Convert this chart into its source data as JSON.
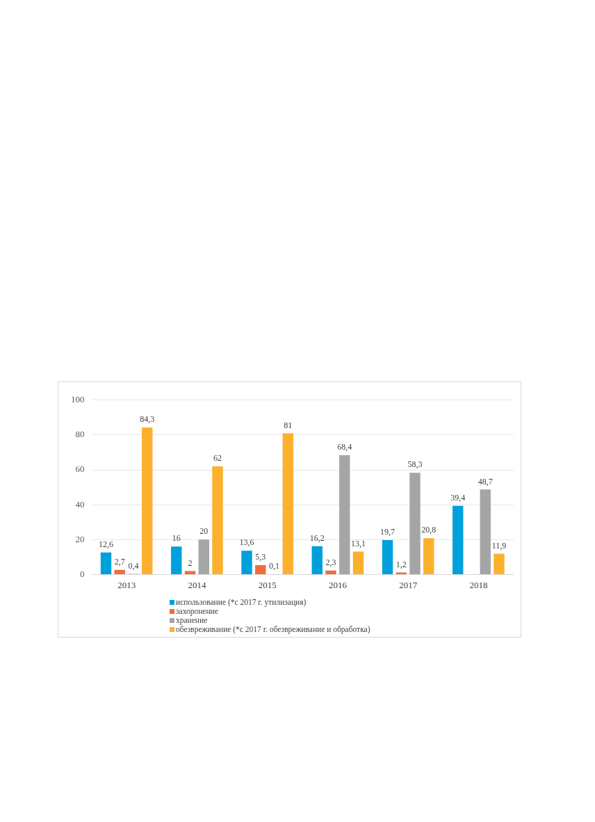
{
  "chart_data": {
    "type": "bar",
    "categories": [
      "2013",
      "2014",
      "2015",
      "2016",
      "2017",
      "2018"
    ],
    "series": [
      {
        "name": "использование (*с 2017 г.  утилизация)",
        "color": "#00a0dc",
        "values": [
          12.6,
          16,
          13.6,
          16.2,
          19.7,
          39.4
        ],
        "value_labels": [
          "12,6",
          "16",
          "13,6",
          "16,2",
          "19,7",
          "39,4"
        ]
      },
      {
        "name": "захоронение",
        "color": "#ef6c3c",
        "values": [
          2.7,
          2,
          5.3,
          2.3,
          1.2,
          null
        ],
        "value_labels": [
          "2,7",
          "2",
          "5,3",
          "2,3",
          "1,2",
          null
        ]
      },
      {
        "name": "хранение",
        "color": "#a5a5a5",
        "values": [
          0.4,
          20,
          0.1,
          68.4,
          58.3,
          48.7
        ],
        "value_labels": [
          "0,4",
          "20",
          "0,1",
          "68,4",
          "58,3",
          "48,7"
        ]
      },
      {
        "name": "обезвреживание (*с 2017 г. обезвреживание и обработка)",
        "color": "#fdb02e",
        "values": [
          84.3,
          62,
          81,
          13.1,
          20.8,
          11.9
        ],
        "value_labels": [
          "84,3",
          "62",
          "81",
          "13,1",
          "20,8",
          "11,9"
        ]
      }
    ],
    "ylim": [
      0,
      100
    ],
    "yticks": [
      0,
      20,
      40,
      60,
      80,
      100
    ],
    "grid": "y",
    "legend": "bottom"
  }
}
